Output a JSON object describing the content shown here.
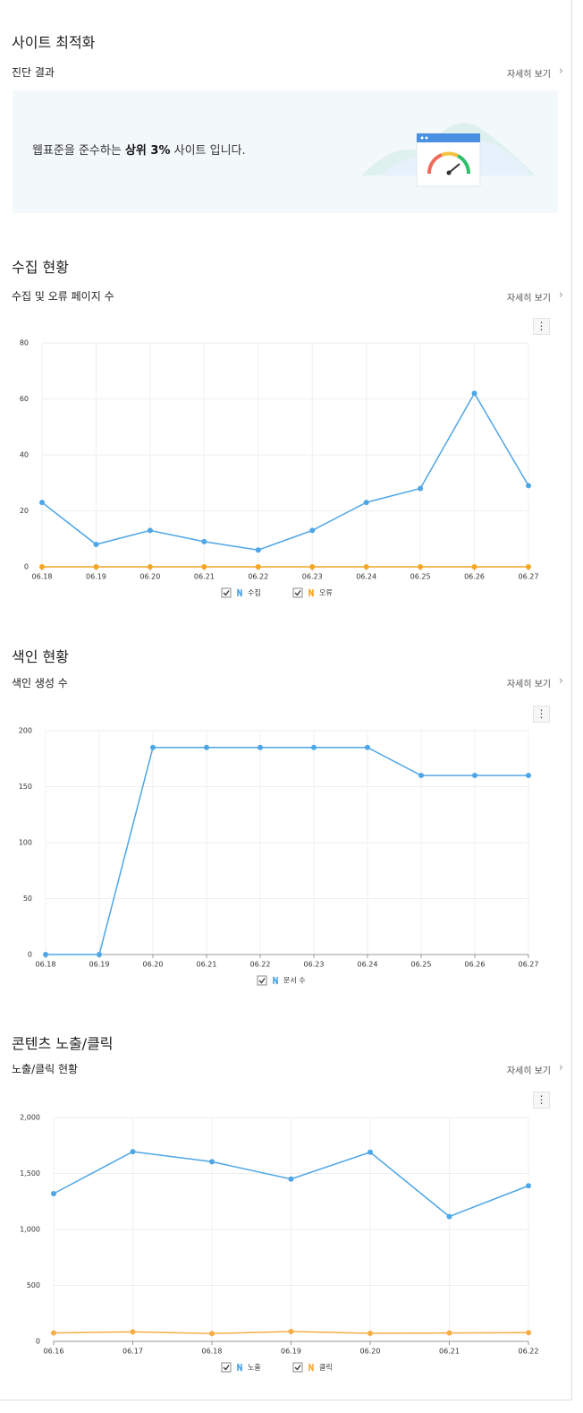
{
  "sections": [
    {
      "title": "사이트 최적화",
      "subtitle": "진단 결과",
      "link": "자세히 보기"
    },
    {
      "title": "수집 현황",
      "subtitle": "수집 및 오류 페이지 수",
      "link": "자세히 보기"
    },
    {
      "title": "색인 현황",
      "subtitle": "색인 생성 수",
      "link": "자세히 보기"
    },
    {
      "title": "콘텐츠 노출/클릭",
      "subtitle": "노출/클릭 현황",
      "link": "자세히 보기"
    }
  ],
  "banner": {
    "prefix": "웹표준을 준수하는",
    "highlight": "상위 3%",
    "suffix": "사이트 입니다."
  },
  "chart_data": [
    {
      "type": "line",
      "categories": [
        "06.18",
        "06.19",
        "06.20",
        "06.21",
        "06.22",
        "06.23",
        "06.24",
        "06.25",
        "06.26",
        "06.27"
      ],
      "series": [
        {
          "name": "수집",
          "color": "#4ea6e6",
          "values": [
            23,
            8,
            13,
            9,
            6,
            13,
            23,
            28,
            62,
            29
          ]
        },
        {
          "name": "오류",
          "color": "#f5a623",
          "values": [
            0,
            0,
            0,
            0,
            0,
            0,
            0,
            0,
            0,
            0
          ]
        }
      ],
      "ylim": [
        0,
        80
      ],
      "yticks": [
        0,
        20,
        40,
        60,
        80
      ],
      "grid": true
    },
    {
      "type": "line",
      "categories": [
        "06.18",
        "06.19",
        "06.20",
        "06.21",
        "06.22",
        "06.23",
        "06.24",
        "06.25",
        "06.26",
        "06.27"
      ],
      "series": [
        {
          "name": "문서 수",
          "color": "#4ea6e6",
          "values": [
            0,
            0,
            185,
            185,
            185,
            185,
            185,
            160,
            160,
            160
          ]
        }
      ],
      "ylim": [
        0,
        200
      ],
      "yticks": [
        0,
        50,
        100,
        150,
        200
      ],
      "grid": true
    },
    {
      "type": "line",
      "categories": [
        "06.16",
        "06.17",
        "06.18",
        "06.19",
        "06.20",
        "06.21",
        "06.22"
      ],
      "series": [
        {
          "name": "노출",
          "color": "#4ea6e6",
          "values": [
            1320,
            1695,
            1605,
            1450,
            1690,
            1115,
            1390
          ]
        },
        {
          "name": "클릭",
          "color": "#f5ad45",
          "values": [
            75,
            85,
            70,
            88,
            72,
            75,
            78
          ]
        }
      ],
      "ylim": [
        0,
        2000
      ],
      "yticks": [
        0,
        500,
        {
          "value": 1000,
          "label": "1,000"
        },
        {
          "value": 1500,
          "label": "1,500"
        },
        {
          "value": 2000,
          "label": "2,000"
        }
      ],
      "grid": true
    }
  ]
}
